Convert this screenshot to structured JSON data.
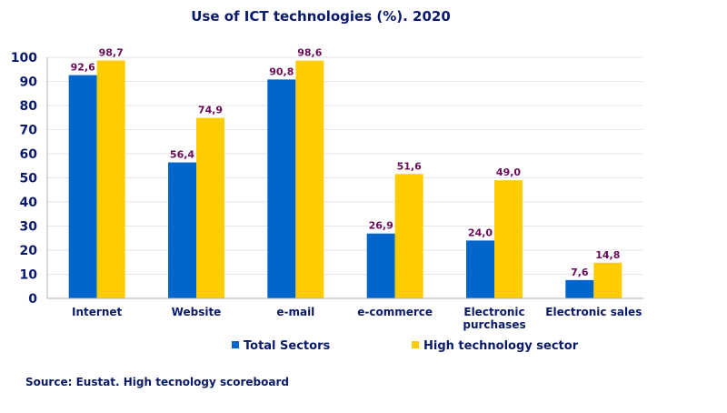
{
  "chart_data": {
    "type": "bar",
    "title": "Use of ICT technologies (%). 2020",
    "categories": [
      "Internet",
      "Website",
      "e-mail",
      "e-commerce",
      "Electronic purchases",
      "Electronic sales"
    ],
    "category_lines": [
      [
        "Internet"
      ],
      [
        "Website"
      ],
      [
        "e-mail"
      ],
      [
        "e-commerce"
      ],
      [
        "Electronic",
        "purchases"
      ],
      [
        "Electronic sales"
      ]
    ],
    "series": [
      {
        "name": "Total Sectors",
        "color": "#0066cc",
        "values": [
          92.6,
          56.4,
          90.8,
          26.9,
          24.0,
          7.6
        ],
        "labels": [
          "92,6",
          "56,4",
          "90,8",
          "26,9",
          "24,0",
          "7,6"
        ]
      },
      {
        "name": "High technology sector",
        "color": "#ffcc00",
        "values": [
          98.7,
          74.9,
          98.6,
          51.6,
          49.0,
          14.8
        ],
        "labels": [
          "98,7",
          "74,9",
          "98,6",
          "51,6",
          "49,0",
          "14,8"
        ]
      }
    ],
    "yticks": [
      "0",
      "10",
      "20",
      "30",
      "40",
      "50",
      "60",
      "70",
      "80",
      "90",
      "100"
    ],
    "ylim": [
      0,
      100
    ],
    "xlabel": "",
    "ylabel": "",
    "legend_position": "bottom",
    "grid": true,
    "source": "Source: Eustat. High tecnology scoreboard"
  }
}
